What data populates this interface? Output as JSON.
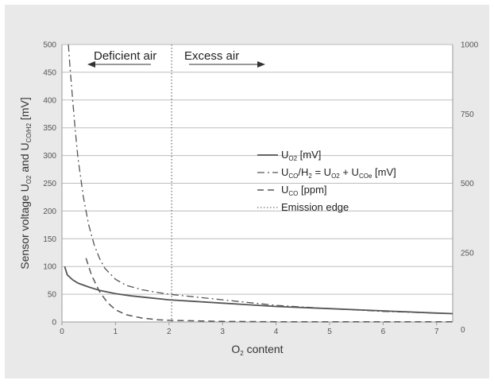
{
  "chart_data": {
    "type": "line",
    "xlabel_main": "O",
    "xlabel_sub": "2",
    "xlabel_rest": " content",
    "ylabel_parts": [
      "Sensor voltage U",
      "O2",
      " and U",
      "CO/H2",
      " [mV]"
    ],
    "x_ticks": [
      "0",
      "1",
      "2",
      "3",
      "4",
      "5",
      "6",
      "7"
    ],
    "y_left_ticks": [
      "0",
      "50",
      "100",
      "150",
      "200",
      "250",
      "300",
      "350",
      "400",
      "450",
      "500"
    ],
    "y_right_ticks": [
      "0",
      "250",
      "500",
      "750",
      "1000"
    ],
    "xlim": [
      0,
      7.3
    ],
    "ylim_left": [
      0,
      500
    ],
    "ylim_right": [
      0,
      1000
    ],
    "grid": true,
    "annotations": {
      "left": "Deficient air",
      "right": "Excess air",
      "edge_x": 2.05
    },
    "legend": [
      {
        "parts": [
          "U",
          "O2",
          " [mV]"
        ],
        "style": "solid"
      },
      {
        "parts": [
          "U",
          "CO",
          "/H",
          "2",
          " = U",
          "O2",
          " + U",
          "COe",
          " [mV]"
        ],
        "style": "dashdot"
      },
      {
        "parts": [
          "U",
          "CO",
          " [ppm]"
        ],
        "style": "dashed"
      },
      {
        "parts": [
          "Emission edge"
        ],
        "style": "dotted"
      }
    ],
    "series": [
      {
        "name": "UO2 [mV]",
        "style": "solid",
        "axis": "left",
        "x": [
          0.05,
          0.1,
          0.2,
          0.3,
          0.5,
          0.7,
          1.0,
          1.3,
          1.6,
          2.0,
          2.5,
          3.0,
          3.5,
          4.0,
          4.5,
          5.0,
          5.5,
          6.0,
          6.5,
          7.0,
          7.3
        ],
        "y": [
          100,
          85,
          76,
          70,
          63,
          57,
          51,
          47,
          44,
          40,
          37,
          34,
          31,
          28,
          26,
          24,
          22,
          20,
          18,
          16,
          15
        ]
      },
      {
        "name": "UCO/H2 = UO2 + UCOe [mV]",
        "style": "dashdot",
        "axis": "left",
        "x": [
          0.12,
          0.15,
          0.2,
          0.25,
          0.3,
          0.4,
          0.5,
          0.6,
          0.7,
          0.8,
          1.0,
          1.2,
          1.5,
          1.8,
          2.0,
          2.5,
          3.0,
          3.5,
          4.0,
          5.0,
          6.0,
          7.0,
          7.3
        ],
        "y": [
          500,
          460,
          400,
          345,
          295,
          225,
          175,
          140,
          115,
          97,
          77,
          66,
          58,
          53,
          50,
          45,
          40,
          35,
          30,
          24,
          19,
          16,
          15
        ]
      },
      {
        "name": "UCO [ppm]",
        "style": "dashed",
        "axis": "left",
        "x": [
          0.45,
          0.55,
          0.7,
          0.85,
          1.0,
          1.2,
          1.5,
          1.8,
          2.0,
          2.5,
          3.0,
          4.0,
          5.0,
          6.0,
          7.0,
          7.3
        ],
        "y": [
          115,
          85,
          55,
          35,
          22,
          13,
          7,
          4,
          3,
          2,
          1,
          0.5,
          0.4,
          0.3,
          0.3,
          0.3
        ]
      }
    ]
  }
}
